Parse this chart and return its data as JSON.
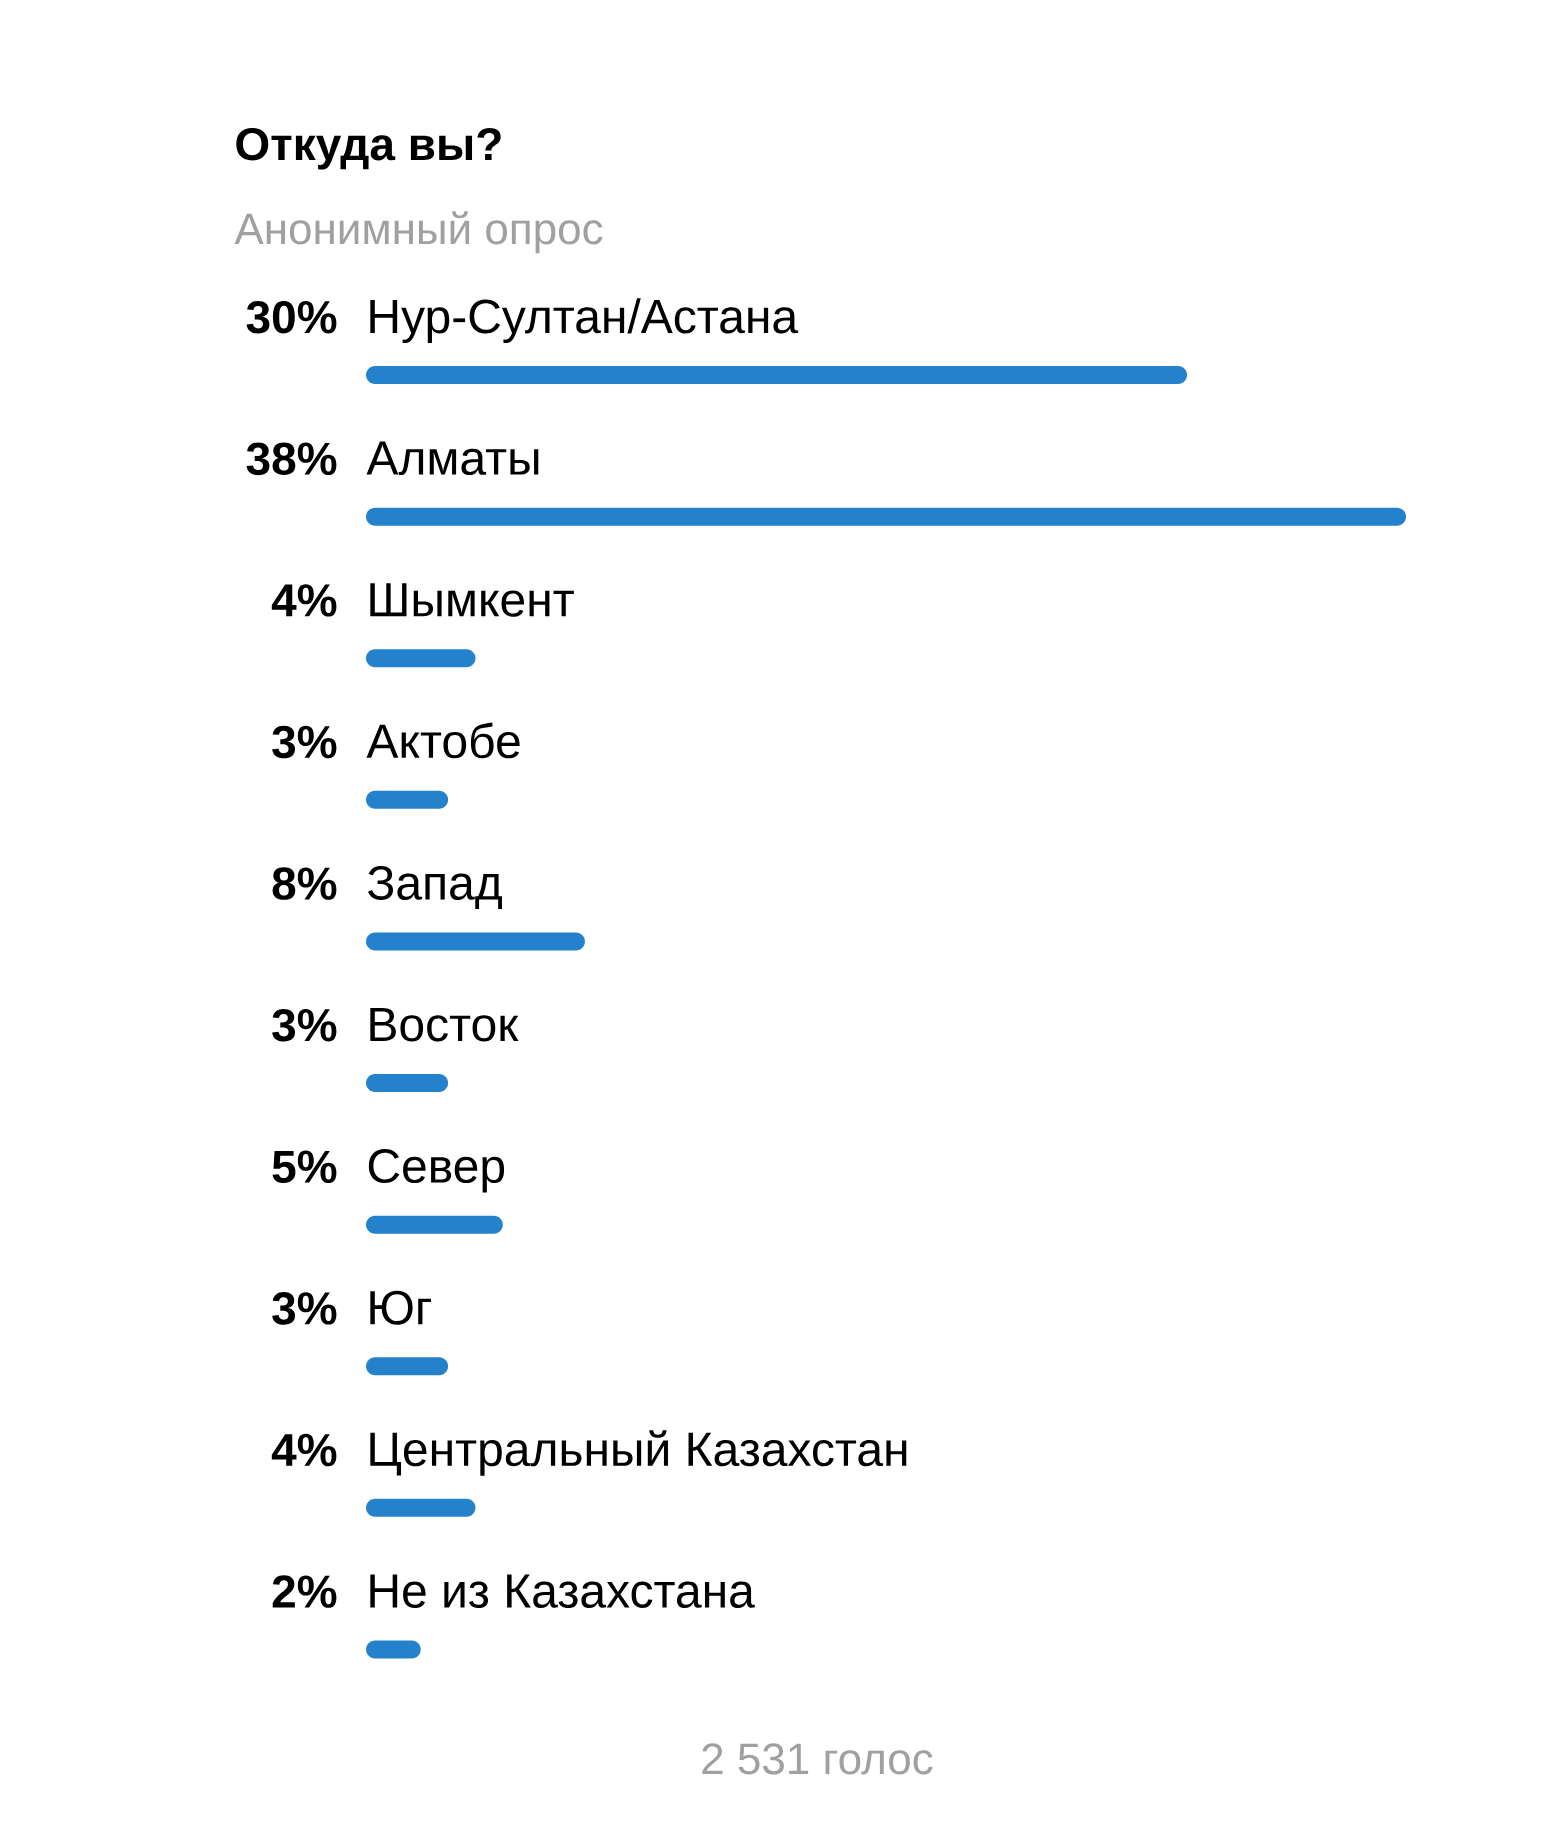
{
  "chart_data": {
    "type": "bar",
    "orientation": "horizontal",
    "title": "Откуда вы?",
    "subtitle": "Анонимный опрос",
    "categories": [
      "Нур-Султан/Астана",
      "Алматы",
      "Шымкент",
      "Актобе",
      "Запад",
      "Восток",
      "Север",
      "Юг",
      "Центральный Казахстан",
      "Не из Казахстана"
    ],
    "values": [
      30,
      38,
      4,
      3,
      8,
      3,
      5,
      3,
      4,
      2
    ],
    "value_labels": [
      "30%",
      "38%",
      "4%",
      "3%",
      "8%",
      "3%",
      "5%",
      "3%",
      "4%",
      "2%"
    ],
    "color": "#2481cc",
    "annotations": [
      "2 531 голос"
    ]
  }
}
